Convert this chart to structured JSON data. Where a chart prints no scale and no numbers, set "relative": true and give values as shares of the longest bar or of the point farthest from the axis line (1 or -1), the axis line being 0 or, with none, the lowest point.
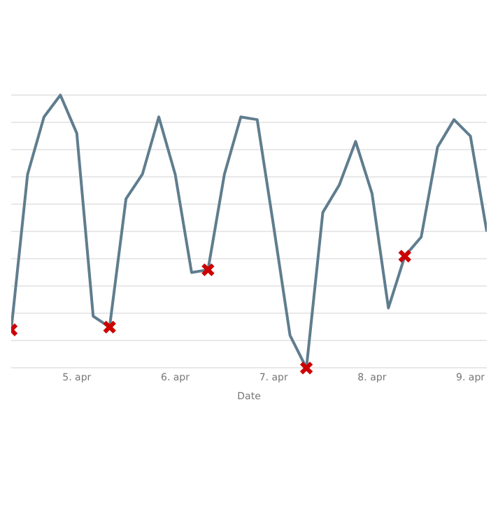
{
  "chart_data": {
    "type": "line",
    "xlabel": "Date",
    "relative": true,
    "grid": "y",
    "legend": false,
    "x": [
      "--04-04T08:00",
      "--04-04T12:00",
      "--04-04T16:00",
      "--04-04T20:00",
      "--04-05T00:00",
      "--04-05T04:00",
      "--04-05T08:00",
      "--04-05T12:00",
      "--04-05T16:00",
      "--04-05T20:00",
      "--04-06T00:00",
      "--04-06T04:00",
      "--04-06T08:00",
      "--04-06T12:00",
      "--04-06T16:00",
      "--04-06T20:00",
      "--04-07T00:00",
      "--04-07T04:00",
      "--04-07T08:00",
      "--04-07T12:00",
      "--04-07T16:00",
      "--04-07T20:00",
      "--04-08T00:00",
      "--04-08T04:00",
      "--04-08T08:00",
      "--04-08T12:00",
      "--04-08T16:00",
      "--04-08T20:00",
      "--04-09T00:00",
      "--04-09T04:00"
    ],
    "xlim": [
      "--04-04T08:00",
      "--04-09T04:00"
    ],
    "xticks": [
      {
        "value": "--04-05T00:00",
        "label": "5. apr"
      },
      {
        "value": "--04-06T00:00",
        "label": "6. apr"
      },
      {
        "value": "--04-07T00:00",
        "label": "7. apr"
      },
      {
        "value": "--04-08T00:00",
        "label": "8. apr"
      },
      {
        "value": "--04-09T00:00",
        "label": "9. apr"
      }
    ],
    "series": [
      {
        "color": "#5f7d8e",
        "marker": "none",
        "values": [
          0.14,
          0.71,
          0.92,
          1,
          0.86,
          0.19,
          0.15,
          0.62,
          0.71,
          0.92,
          0.71,
          0.35,
          0.36,
          0.71,
          0.92,
          0.91,
          0.52,
          0.12,
          0,
          0.57,
          0.67,
          0.83,
          0.64,
          0.22,
          0.41,
          0.48,
          0.81,
          0.91,
          0.85,
          0.5
        ]
      },
      {
        "type": "scatter",
        "color": "#cc0000",
        "marker": "cross",
        "values": [
          0.14,
          null,
          null,
          null,
          null,
          null,
          0.15,
          null,
          null,
          null,
          null,
          null,
          0.36,
          null,
          null,
          null,
          null,
          null,
          0,
          null,
          null,
          null,
          null,
          null,
          0.41,
          null,
          null,
          null,
          null,
          null
        ]
      }
    ]
  }
}
